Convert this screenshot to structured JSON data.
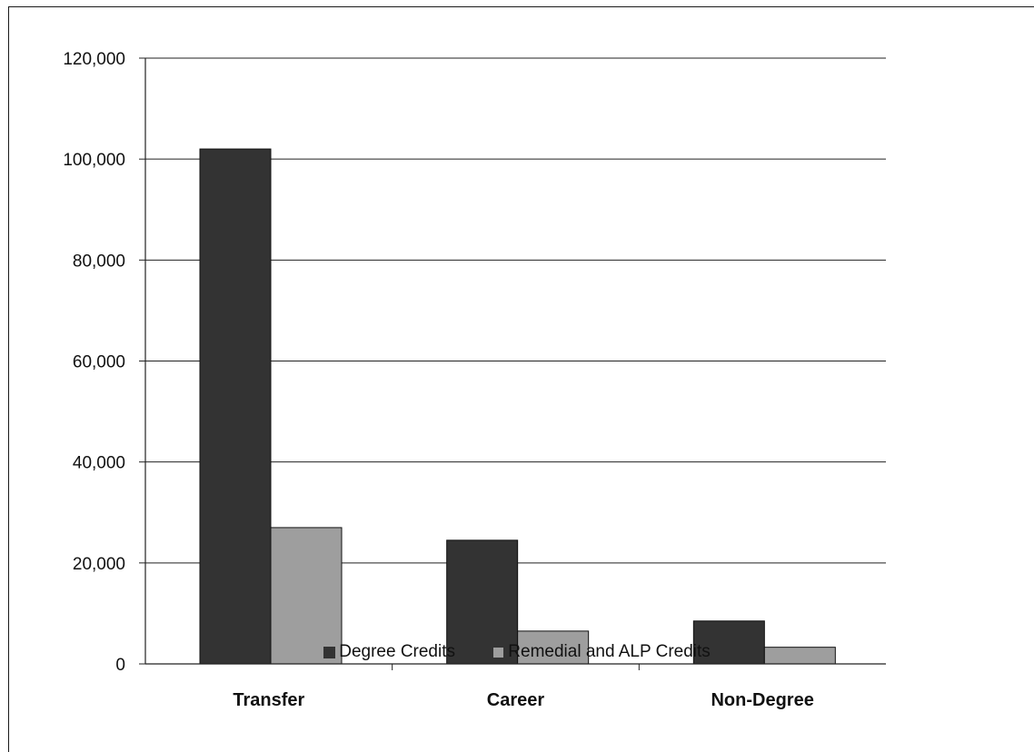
{
  "chart_data": {
    "type": "bar",
    "categories": [
      "Transfer",
      "Career",
      "Non-Degree"
    ],
    "series": [
      {
        "name": "Degree Credits",
        "values": [
          102000,
          24500,
          8500
        ],
        "color": "#333333"
      },
      {
        "name": "Remedial and ALP Credits",
        "values": [
          27000,
          6500,
          3300
        ],
        "color": "#9e9e9e"
      }
    ],
    "ylim": [
      0,
      120000
    ],
    "yticks": [
      {
        "value": 0,
        "label": "0"
      },
      {
        "value": 20000,
        "label": "20,000"
      },
      {
        "value": 40000,
        "label": "40,000"
      },
      {
        "value": 60000,
        "label": "60,000"
      },
      {
        "value": 80000,
        "label": "80,000"
      },
      {
        "value": 100000,
        "label": "100,000"
      },
      {
        "value": 120000,
        "label": "120,000"
      }
    ],
    "grid": true,
    "legend_position": "bottom"
  }
}
